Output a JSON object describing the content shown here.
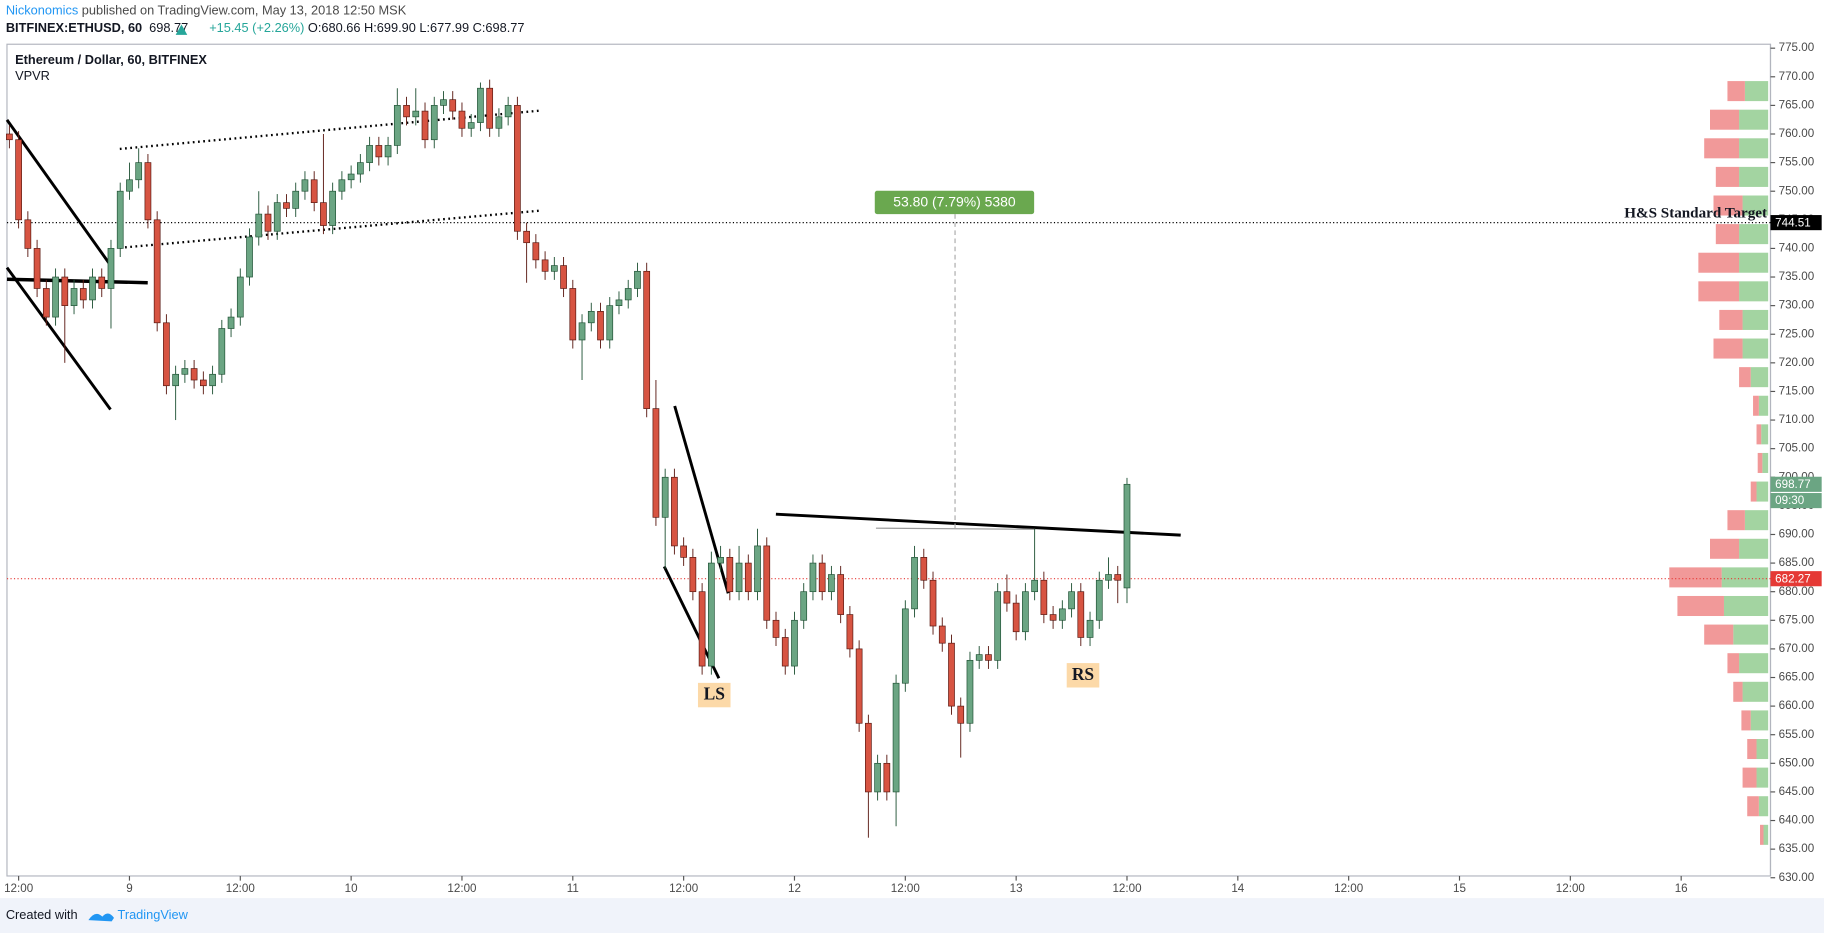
{
  "header": {
    "author": "Nickonomics",
    "published": "published on TradingView.com, May 13, 2018 12:50 MSK",
    "symbol": "BITFINEX:ETHUSD, 60",
    "last": "698.77",
    "change": "+15.45 (+2.26%)",
    "open": "O:680.66",
    "high": "H:699.90",
    "low": "L:677.99",
    "close": "C:698.77"
  },
  "footer": {
    "created": "Created with",
    "brand": "TradingView"
  },
  "chart_data": {
    "type": "candlestick",
    "title": "Ethereum / Dollar, 60, BITFINEX",
    "indicator": "VPVR",
    "up_color": "#6ba583",
    "down_color": "#d75442",
    "up_border": "#225437",
    "down_border": "#5b1a13",
    "xlim": [
      10.74,
      201.67
    ],
    "ylim": [
      630.31,
      775.69
    ],
    "xticks": [
      {
        "value": 12,
        "label": "12:00"
      },
      {
        "value": 24,
        "label": "9"
      },
      {
        "value": 36,
        "label": "12:00"
      },
      {
        "value": 48,
        "label": "10"
      },
      {
        "value": 60,
        "label": "12:00"
      },
      {
        "value": 72,
        "label": "11"
      },
      {
        "value": 84,
        "label": "12:00"
      },
      {
        "value": 96,
        "label": "12"
      },
      {
        "value": 108,
        "label": "12:00"
      },
      {
        "value": 120,
        "label": "13"
      },
      {
        "value": 132,
        "label": "12:00"
      },
      {
        "value": 144,
        "label": "14"
      },
      {
        "value": 156,
        "label": "12:00"
      },
      {
        "value": 168,
        "label": "15"
      },
      {
        "value": 180,
        "label": "12:00"
      },
      {
        "value": 192,
        "label": "16"
      }
    ],
    "yticks": [
      {
        "value": 630,
        "label": "630.00"
      },
      {
        "value": 635,
        "label": "635.00"
      },
      {
        "value": 640,
        "label": "640.00"
      },
      {
        "value": 645,
        "label": "645.00"
      },
      {
        "value": 650,
        "label": "650.00"
      },
      {
        "value": 655,
        "label": "655.00"
      },
      {
        "value": 660,
        "label": "660.00"
      },
      {
        "value": 665,
        "label": "665.00"
      },
      {
        "value": 670,
        "label": "670.00"
      },
      {
        "value": 675,
        "label": "675.00"
      },
      {
        "value": 680,
        "label": "680.00"
      },
      {
        "value": 685,
        "label": "685.00"
      },
      {
        "value": 690,
        "label": "690.00"
      },
      {
        "value": 695,
        "label": "695.00"
      },
      {
        "value": 700,
        "label": "700.00"
      },
      {
        "value": 705,
        "label": "705.00"
      },
      {
        "value": 710,
        "label": "710.00"
      },
      {
        "value": 715,
        "label": "715.00"
      },
      {
        "value": 720,
        "label": "720.00"
      },
      {
        "value": 725,
        "label": "725.00"
      },
      {
        "value": 730,
        "label": "730.00"
      },
      {
        "value": 735,
        "label": "735.00"
      },
      {
        "value": 740,
        "label": "740.00"
      },
      {
        "value": 745,
        "label": "745.00"
      },
      {
        "value": 750,
        "label": "750.00"
      },
      {
        "value": 755,
        "label": "755.00"
      },
      {
        "value": 760,
        "label": "760.00"
      },
      {
        "value": 765,
        "label": "765.00"
      },
      {
        "value": 770,
        "label": "770.00"
      },
      {
        "value": 775,
        "label": "775.00"
      }
    ],
    "x": [
      11,
      12,
      13,
      14,
      15,
      16,
      17,
      18,
      19,
      20,
      21,
      22,
      23,
      24,
      25,
      26,
      27,
      28,
      29,
      30,
      31,
      32,
      33,
      34,
      35,
      36,
      37,
      38,
      39,
      40,
      41,
      42,
      43,
      44,
      45,
      46,
      47,
      48,
      49,
      50,
      51,
      52,
      53,
      54,
      55,
      56,
      57,
      58,
      59,
      60,
      61,
      62,
      63,
      64,
      65,
      66,
      67,
      68,
      69,
      70,
      71,
      72,
      73,
      74,
      75,
      76,
      77,
      78,
      79,
      80,
      81,
      82,
      83,
      84,
      85,
      86,
      87,
      88,
      89,
      90,
      91,
      92,
      93,
      94,
      95,
      96,
      97,
      98,
      99,
      100,
      101,
      102,
      103,
      104,
      105,
      106,
      107,
      108,
      109,
      110,
      111,
      112,
      113,
      114,
      115,
      116,
      117,
      118,
      119,
      120,
      121,
      122,
      123,
      124,
      125,
      126,
      127,
      128,
      129,
      130,
      131,
      132
    ],
    "ohlc": [
      [
        760,
        761.5,
        757.5,
        759
      ],
      [
        759,
        760.5,
        743.5,
        745
      ],
      [
        745,
        746.5,
        738.5,
        740
      ],
      [
        740,
        741.5,
        731.5,
        733
      ],
      [
        733,
        734.5,
        726.5,
        728
      ],
      [
        728,
        736.5,
        726.5,
        735
      ],
      [
        735,
        736.5,
        720,
        730
      ],
      [
        730,
        734.5,
        728.5,
        733
      ],
      [
        733,
        734.5,
        729.5,
        731
      ],
      [
        731,
        736.5,
        729.5,
        735
      ],
      [
        735,
        736.5,
        731.5,
        733
      ],
      [
        733,
        741.5,
        726,
        740
      ],
      [
        740,
        751.5,
        738.5,
        750
      ],
      [
        750,
        755,
        748.5,
        752
      ],
      [
        752,
        757.5,
        750.5,
        755
      ],
      [
        755,
        756.5,
        743.5,
        745
      ],
      [
        745,
        746.5,
        725.5,
        727
      ],
      [
        727,
        728.5,
        714.5,
        716
      ],
      [
        716,
        719.5,
        710,
        718
      ],
      [
        718,
        720.5,
        716.5,
        719
      ],
      [
        719,
        720.5,
        715.5,
        717
      ],
      [
        717,
        718.5,
        714.5,
        716
      ],
      [
        716,
        719.5,
        714.5,
        718
      ],
      [
        718,
        727.5,
        716.5,
        726
      ],
      [
        726,
        729.5,
        724.5,
        728
      ],
      [
        728,
        736.5,
        726.5,
        735
      ],
      [
        735,
        743.5,
        733.5,
        742
      ],
      [
        742,
        750,
        740.5,
        746
      ],
      [
        746,
        747.5,
        741.5,
        743
      ],
      [
        743,
        749.5,
        741.5,
        748
      ],
      [
        748,
        749.5,
        745.5,
        747
      ],
      [
        747,
        751.5,
        745.5,
        750
      ],
      [
        750,
        753.5,
        748.5,
        752
      ],
      [
        752,
        753.5,
        746.5,
        748
      ],
      [
        748,
        760,
        742.5,
        744
      ],
      [
        744,
        751.5,
        742.5,
        750
      ],
      [
        750,
        753.5,
        748.5,
        752
      ],
      [
        752,
        754.5,
        750.5,
        753
      ],
      [
        753,
        756.5,
        751.5,
        755
      ],
      [
        755,
        759.5,
        753.5,
        758
      ],
      [
        758,
        759.5,
        754.5,
        756
      ],
      [
        756,
        759.5,
        754.5,
        758
      ],
      [
        758,
        768,
        756.5,
        765
      ],
      [
        765,
        766.5,
        761.5,
        763
      ],
      [
        763,
        768,
        761.5,
        764
      ],
      [
        764,
        765.5,
        757.5,
        759
      ],
      [
        759,
        766.5,
        757.5,
        765
      ],
      [
        765,
        767.5,
        763.5,
        766
      ],
      [
        766,
        767.5,
        762.5,
        764
      ],
      [
        764,
        765.5,
        759.5,
        761
      ],
      [
        761,
        763.5,
        759.5,
        762
      ],
      [
        762,
        769,
        760.5,
        768
      ],
      [
        768,
        769.5,
        759.5,
        761
      ],
      [
        761,
        764.5,
        759.5,
        763
      ],
      [
        763,
        766.5,
        761.5,
        765
      ],
      [
        765,
        766.5,
        741.5,
        743
      ],
      [
        743,
        744.5,
        734,
        741
      ],
      [
        741,
        742.5,
        736.5,
        738
      ],
      [
        738,
        739.5,
        734.5,
        736
      ],
      [
        736,
        738.5,
        734.5,
        737
      ],
      [
        737,
        738.5,
        731.5,
        733
      ],
      [
        733,
        734.5,
        722.5,
        724
      ],
      [
        724,
        728.5,
        717,
        727
      ],
      [
        727,
        730.5,
        725.5,
        729
      ],
      [
        729,
        730.5,
        722.5,
        724
      ],
      [
        724,
        731.5,
        722.5,
        730
      ],
      [
        730,
        732.5,
        728.5,
        731
      ],
      [
        731,
        734.5,
        729.5,
        733
      ],
      [
        733,
        737.5,
        731.5,
        736
      ],
      [
        736,
        737.5,
        710.5,
        712
      ],
      [
        712,
        717,
        691.5,
        693
      ],
      [
        693,
        701.5,
        684,
        700
      ],
      [
        700,
        701.5,
        686.5,
        688
      ],
      [
        688,
        689.5,
        684.5,
        686
      ],
      [
        686,
        687.5,
        678.5,
        680
      ],
      [
        680,
        681.5,
        665.5,
        667
      ],
      [
        667,
        687,
        665.5,
        685
      ],
      [
        685,
        688,
        683.5,
        686
      ],
      [
        686,
        687.5,
        678.5,
        680
      ],
      [
        680,
        688,
        678.5,
        685
      ],
      [
        685,
        686.5,
        678.5,
        680
      ],
      [
        680,
        691,
        678.5,
        688
      ],
      [
        688,
        689.5,
        673.5,
        675
      ],
      [
        675,
        676.5,
        670.5,
        672
      ],
      [
        672,
        673.5,
        665.5,
        667
      ],
      [
        667,
        676.5,
        665.5,
        675
      ],
      [
        675,
        681.5,
        673.5,
        680
      ],
      [
        680,
        686.5,
        678.5,
        685
      ],
      [
        685,
        686.5,
        678.5,
        680
      ],
      [
        680,
        684.5,
        678.5,
        683
      ],
      [
        683,
        684.5,
        674.5,
        676
      ],
      [
        676,
        677.5,
        668.5,
        670
      ],
      [
        670,
        671.5,
        655.5,
        657
      ],
      [
        657,
        658.5,
        637,
        645
      ],
      [
        645,
        651.5,
        643.5,
        650
      ],
      [
        650,
        651.5,
        643.5,
        645
      ],
      [
        645,
        665.5,
        639,
        664
      ],
      [
        664,
        678.5,
        662.5,
        677
      ],
      [
        677,
        688,
        675.5,
        686
      ],
      [
        686,
        687.5,
        680.5,
        682
      ],
      [
        682,
        683.5,
        672.5,
        674
      ],
      [
        674,
        675.5,
        669.5,
        671
      ],
      [
        671,
        672.5,
        658.5,
        660
      ],
      [
        660,
        661.5,
        651,
        657
      ],
      [
        657,
        669.5,
        655.5,
        668
      ],
      [
        668,
        670.5,
        666.5,
        669
      ],
      [
        669,
        670.5,
        666.5,
        668
      ],
      [
        668,
        681.5,
        666.5,
        680
      ],
      [
        680,
        683,
        676.5,
        678
      ],
      [
        678,
        679.5,
        671.5,
        673
      ],
      [
        673,
        681.5,
        671.5,
        680
      ],
      [
        680,
        691,
        678.5,
        682
      ],
      [
        682,
        683.5,
        674.5,
        676
      ],
      [
        676,
        677.5,
        673.5,
        675
      ],
      [
        675,
        678.5,
        673.5,
        677
      ],
      [
        677,
        681.5,
        675.5,
        680
      ],
      [
        680,
        681.5,
        670.5,
        672
      ],
      [
        672,
        676.5,
        670.5,
        675
      ],
      [
        675,
        683.5,
        673.5,
        682
      ],
      [
        682,
        686,
        680.5,
        683
      ],
      [
        683,
        684.5,
        678,
        682
      ],
      [
        680.66,
        699.9,
        677.99,
        698.77
      ]
    ],
    "volume_profile": {
      "up_color": "#8cc98a",
      "down_color": "#ee8080",
      "levels": [
        767.5,
        762.5,
        757.5,
        752.5,
        747.5,
        742.5,
        737.5,
        732.5,
        727.5,
        722.5,
        717.5,
        712.5,
        707.5,
        702.5,
        697.5,
        692.5,
        687.5,
        682.5,
        677.5,
        672.5,
        667.5,
        662.5,
        657.5,
        652.5,
        647.5,
        642.5,
        637.5
      ],
      "up": [
        20,
        25,
        25,
        25,
        22,
        25,
        25,
        25,
        22,
        22,
        15,
        8,
        6,
        5,
        10,
        20,
        25,
        40,
        38,
        30,
        25,
        22,
        15,
        10,
        10,
        8,
        4
      ],
      "down": [
        15,
        25,
        30,
        20,
        25,
        20,
        35,
        35,
        20,
        25,
        10,
        5,
        4,
        4,
        5,
        15,
        25,
        45,
        40,
        25,
        10,
        8,
        8,
        8,
        12,
        10,
        3
      ]
    },
    "hlines": [
      {
        "value": 744.51,
        "color": "#000000"
      },
      {
        "value": 682.27,
        "color": "#e53935"
      }
    ],
    "countdown": "09:30",
    "annotations": {
      "measure": "53.80 (7.79%) 5380",
      "target": "H&S Standard Target",
      "left_shoulder": "LS",
      "right_shoulder": "RS"
    }
  }
}
